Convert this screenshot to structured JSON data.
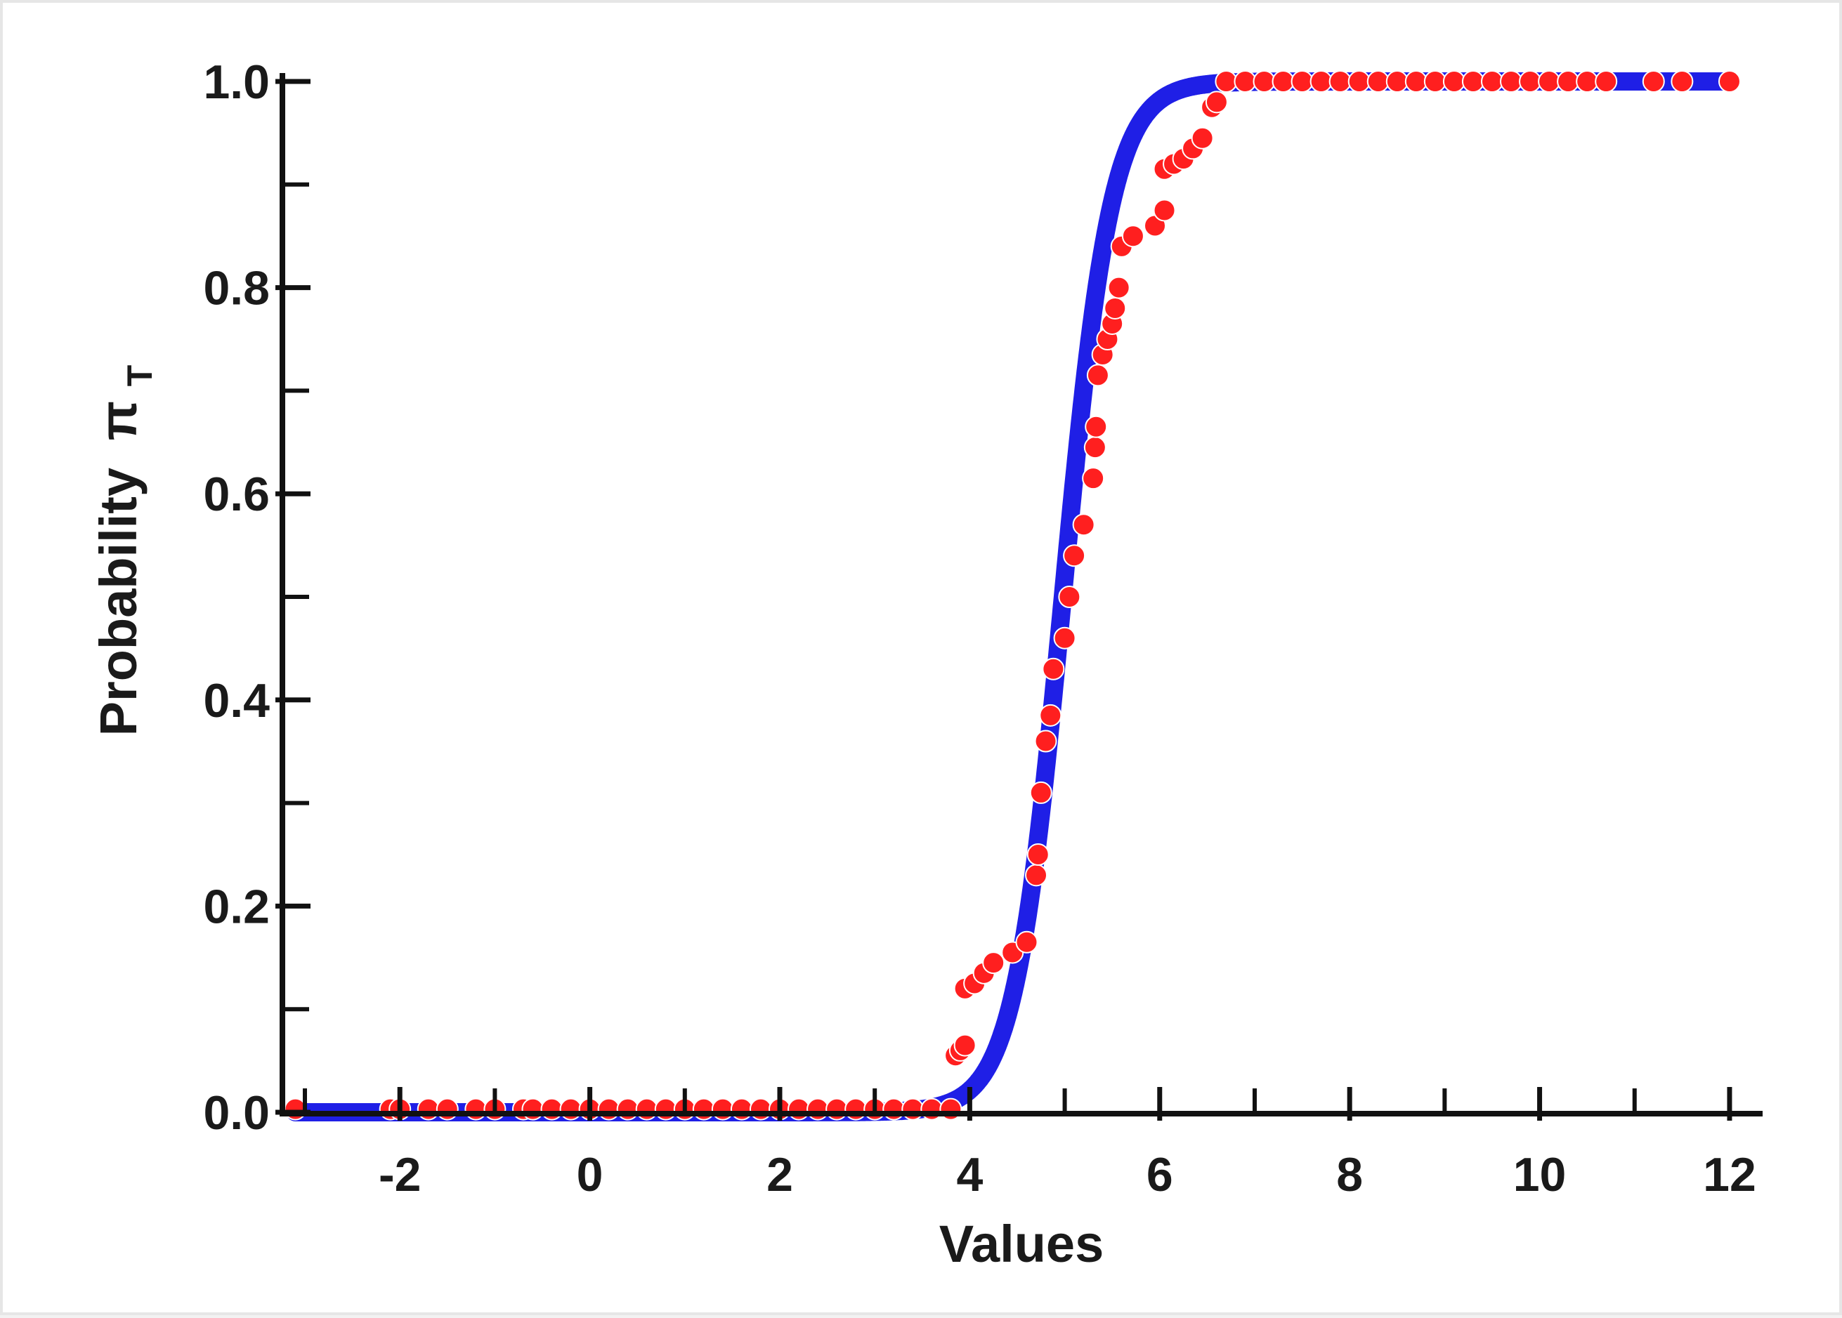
{
  "chart_data": {
    "type": "scatter",
    "xlabel": "Values",
    "ylabel": "Probability",
    "ylabel_symbol": "π",
    "ylabel_subscript": "T",
    "xlim": [
      -3,
      12.2
    ],
    "ylim": [
      0,
      1
    ],
    "x_ticks": [
      -2,
      0,
      2,
      4,
      6,
      8,
      10,
      12
    ],
    "x_tick_labels": [
      "-2",
      "0",
      "2",
      "4",
      "6",
      "8",
      "10",
      "12"
    ],
    "y_ticks": [
      0,
      0.2,
      0.4,
      0.6,
      0.8,
      1.0
    ],
    "y_tick_labels": [
      "0.0",
      "0.2",
      "0.4",
      "0.6",
      "0.8",
      "1.0"
    ],
    "grid": false,
    "legend": "none",
    "series": [
      {
        "color": "#1f1fe6",
        "curve": "logistic",
        "midpoint": 4.98,
        "steepness": 3.9,
        "x_range": [
          -3.1,
          12.0
        ]
      },
      {
        "color": "#ff1f1f",
        "points": [
          [
            -3.1,
            0.003
          ],
          [
            -2.1,
            0.003
          ],
          [
            -2.0,
            0.003
          ],
          [
            -1.7,
            0.003
          ],
          [
            -1.5,
            0.003
          ],
          [
            -1.2,
            0.003
          ],
          [
            -1.0,
            0.003
          ],
          [
            -0.7,
            0.003
          ],
          [
            -0.6,
            0.003
          ],
          [
            -0.4,
            0.003
          ],
          [
            -0.2,
            0.003
          ],
          [
            0.0,
            0.003
          ],
          [
            0.2,
            0.003
          ],
          [
            0.4,
            0.003
          ],
          [
            0.6,
            0.003
          ],
          [
            0.8,
            0.003
          ],
          [
            1.0,
            0.003
          ],
          [
            1.2,
            0.003
          ],
          [
            1.4,
            0.003
          ],
          [
            1.6,
            0.003
          ],
          [
            1.8,
            0.003
          ],
          [
            2.0,
            0.003
          ],
          [
            2.2,
            0.003
          ],
          [
            2.4,
            0.003
          ],
          [
            2.6,
            0.003
          ],
          [
            2.8,
            0.003
          ],
          [
            3.0,
            0.003
          ],
          [
            3.2,
            0.003
          ],
          [
            3.4,
            0.003
          ],
          [
            3.6,
            0.003
          ],
          [
            3.8,
            0.003
          ],
          [
            3.85,
            0.055
          ],
          [
            3.9,
            0.06
          ],
          [
            3.95,
            0.065
          ],
          [
            3.95,
            0.12
          ],
          [
            4.05,
            0.125
          ],
          [
            4.15,
            0.135
          ],
          [
            4.25,
            0.145
          ],
          [
            4.45,
            0.155
          ],
          [
            4.6,
            0.165
          ],
          [
            4.7,
            0.23
          ],
          [
            4.72,
            0.25
          ],
          [
            4.75,
            0.31
          ],
          [
            4.8,
            0.36
          ],
          [
            4.85,
            0.385
          ],
          [
            4.88,
            0.43
          ],
          [
            5.0,
            0.46
          ],
          [
            5.05,
            0.5
          ],
          [
            5.1,
            0.54
          ],
          [
            5.2,
            0.57
          ],
          [
            5.3,
            0.615
          ],
          [
            5.32,
            0.645
          ],
          [
            5.33,
            0.665
          ],
          [
            5.35,
            0.715
          ],
          [
            5.4,
            0.735
          ],
          [
            5.45,
            0.75
          ],
          [
            5.5,
            0.765
          ],
          [
            5.53,
            0.78
          ],
          [
            5.57,
            0.8
          ],
          [
            5.6,
            0.84
          ],
          [
            5.72,
            0.85
          ],
          [
            5.95,
            0.86
          ],
          [
            6.05,
            0.875
          ],
          [
            6.05,
            0.915
          ],
          [
            6.15,
            0.92
          ],
          [
            6.25,
            0.925
          ],
          [
            6.35,
            0.935
          ],
          [
            6.45,
            0.945
          ],
          [
            6.55,
            0.975
          ],
          [
            6.6,
            0.98
          ],
          [
            6.7,
            1.0
          ],
          [
            6.9,
            1.0
          ],
          [
            7.1,
            1.0
          ],
          [
            7.3,
            1.0
          ],
          [
            7.5,
            1.0
          ],
          [
            7.7,
            1.0
          ],
          [
            7.9,
            1.0
          ],
          [
            8.1,
            1.0
          ],
          [
            8.3,
            1.0
          ],
          [
            8.5,
            1.0
          ],
          [
            8.7,
            1.0
          ],
          [
            8.9,
            1.0
          ],
          [
            9.1,
            1.0
          ],
          [
            9.3,
            1.0
          ],
          [
            9.5,
            1.0
          ],
          [
            9.7,
            1.0
          ],
          [
            9.9,
            1.0
          ],
          [
            10.1,
            1.0
          ],
          [
            10.3,
            1.0
          ],
          [
            10.5,
            1.0
          ],
          [
            10.7,
            1.0
          ],
          [
            11.2,
            1.0
          ],
          [
            11.5,
            1.0
          ],
          [
            12.0,
            1.0
          ]
        ]
      }
    ]
  }
}
